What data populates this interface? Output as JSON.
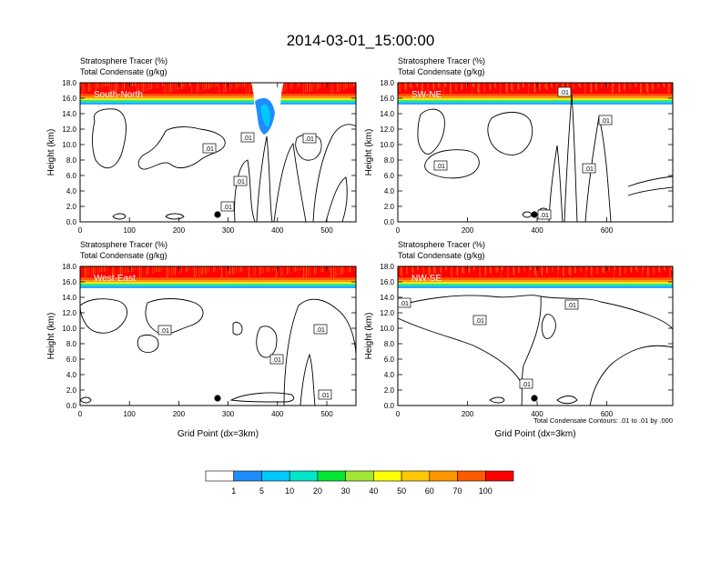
{
  "title": "2014-03-01_15:00:00",
  "panels": [
    {
      "panel_label": "South-North",
      "line1": "Stratosphere Tracer   (%)",
      "line2": "Total Condensate   (g/kg)",
      "ylabel": "Height (km)",
      "xlabel": "",
      "xticks": [
        "0",
        "100",
        "200",
        "300",
        "400",
        "500"
      ],
      "yticks": [
        "0.0",
        "2.0",
        "4.0",
        "6.0",
        "8.0",
        "10.0",
        "12.0",
        "14.0",
        "16.0",
        "18.0"
      ],
      "contour_labels": [
        ".01",
        ".01",
        ".01",
        ".01",
        ".01"
      ],
      "footer": ""
    },
    {
      "panel_label": "SW-NE",
      "line1": "Stratosphere Tracer   (%)",
      "line2": "Total Condensate   (g/kg)",
      "ylabel": "Height (km)",
      "xlabel": "",
      "xticks": [
        "0",
        "200",
        "400",
        "600"
      ],
      "yticks": [
        "0.0",
        "2.0",
        "4.0",
        "6.0",
        "8.0",
        "10.0",
        "12.0",
        "14.0",
        "16.0",
        "18.0"
      ],
      "contour_labels": [
        ".01",
        ".01",
        ".01",
        ".01",
        ".01"
      ],
      "footer": ""
    },
    {
      "panel_label": "West-East",
      "line1": "Stratosphere Tracer   (%)",
      "line2": "Total Condensate   (g/kg)",
      "ylabel": "Height (km)",
      "xlabel": "Grid Point (dx=3km)",
      "xticks": [
        "0",
        "100",
        "200",
        "300",
        "400",
        "500"
      ],
      "yticks": [
        "0.0",
        "2.0",
        "4.0",
        "6.0",
        "8.0",
        "10.0",
        "12.0",
        "14.0",
        "16.0",
        "18.0"
      ],
      "contour_labels": [
        ".01",
        ".01",
        ".01",
        ".01"
      ],
      "footer": ""
    },
    {
      "panel_label": "NW-SE",
      "line1": "Stratosphere Tracer   (%)",
      "line2": "Total Condensate   (g/kg)",
      "ylabel": "Height (km)",
      "xlabel": "Grid Point (dx=3km)",
      "xticks": [
        "0",
        "200",
        "400",
        "600"
      ],
      "yticks": [
        "0.0",
        "2.0",
        "4.0",
        "6.0",
        "8.0",
        "10.0",
        "12.0",
        "14.0",
        "16.0",
        "18.0"
      ],
      "contour_labels": [
        ".01",
        ".01",
        ".01",
        ".01"
      ],
      "footer": "Total Condensate Contours: .01 to .01 by .000"
    }
  ],
  "colorbar": {
    "labels": [
      "1",
      "5",
      "10",
      "20",
      "30",
      "40",
      "50",
      "60",
      "70",
      "100"
    ],
    "colors": [
      "#ffffff",
      "#1e8cff",
      "#00c8ff",
      "#00e6c8",
      "#00e632",
      "#a0e632",
      "#ffff00",
      "#ffc800",
      "#ff9600",
      "#ff5a00",
      "#ff0000"
    ]
  },
  "chart_data": [
    {
      "type": "heatmap",
      "title": "South-North",
      "xlabel": "",
      "ylabel": "Height (km)",
      "xlim": [
        0,
        560
      ],
      "ylim": [
        0,
        18
      ],
      "layers": [
        {
          "name": "Stratosphere Tracer (%)",
          "band_km": [
            15.2,
            18
          ],
          "max_percent": 100
        },
        {
          "name": "Total Condensate (g/kg)",
          "contour_level": 0.01
        }
      ],
      "marker": {
        "x": 280,
        "y": 1
      }
    },
    {
      "type": "heatmap",
      "title": "SW-NE",
      "xlabel": "",
      "ylabel": "Height (km)",
      "xlim": [
        0,
        790
      ],
      "ylim": [
        0,
        18
      ],
      "layers": [
        {
          "name": "Stratosphere Tracer (%)",
          "band_km": [
            15.2,
            18
          ],
          "max_percent": 100
        },
        {
          "name": "Total Condensate (g/kg)",
          "contour_level": 0.01
        }
      ],
      "marker": {
        "x": 395,
        "y": 1
      }
    },
    {
      "type": "heatmap",
      "title": "West-East",
      "xlabel": "Grid Point (dx=3km)",
      "ylabel": "Height (km)",
      "xlim": [
        0,
        560
      ],
      "ylim": [
        0,
        18
      ],
      "layers": [
        {
          "name": "Stratosphere Tracer (%)",
          "band_km": [
            15.2,
            18
          ],
          "max_percent": 100
        },
        {
          "name": "Total Condensate (g/kg)",
          "contour_level": 0.01
        }
      ],
      "marker": {
        "x": 280,
        "y": 1
      }
    },
    {
      "type": "heatmap",
      "title": "NW-SE",
      "xlabel": "Grid Point (dx=3km)",
      "ylabel": "Height (km)",
      "xlim": [
        0,
        790
      ],
      "ylim": [
        0,
        18
      ],
      "layers": [
        {
          "name": "Stratosphere Tracer (%)",
          "band_km": [
            15.2,
            18
          ],
          "max_percent": 100
        },
        {
          "name": "Total Condensate (g/kg)",
          "contour_level": 0.01
        }
      ],
      "marker": {
        "x": 395,
        "y": 1
      }
    }
  ]
}
